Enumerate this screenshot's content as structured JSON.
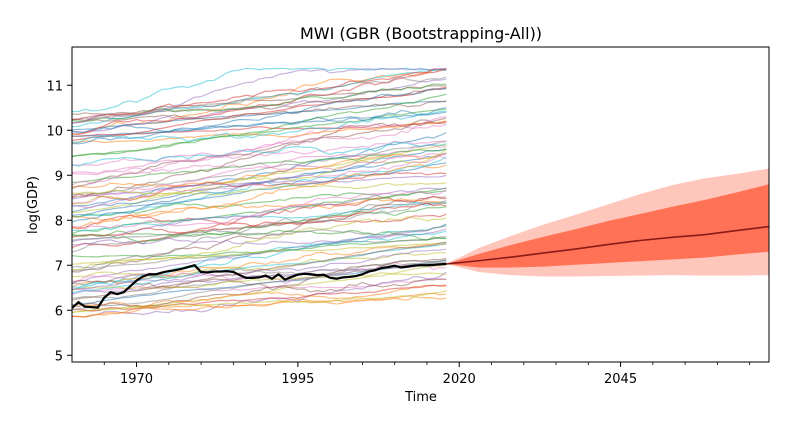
{
  "chart_data": {
    "type": "line",
    "title": "MWI (GBR (Bootstrapping-All))",
    "xlabel": "Time",
    "ylabel": "log(GDP)",
    "xlim": [
      1960,
      2068
    ],
    "ylim": [
      4.85,
      11.85
    ],
    "x_ticks": [
      1970,
      1995,
      2020,
      2045
    ],
    "y_ticks": [
      5,
      6,
      7,
      8,
      9,
      10,
      11
    ],
    "grid": false,
    "legend": "none",
    "history_range": [
      1960,
      2018
    ],
    "forecast_range": [
      2018,
      2068
    ],
    "n_background_series": 90,
    "colors": {
      "highlight_series": "#000000",
      "forecast_median": "#8b1a1a",
      "band_inner": "#ff7256",
      "band_outer": "#ffc6bb"
    },
    "highlight_series": {
      "name": "MWI",
      "x": [
        1960,
        1961,
        1962,
        1963,
        1964,
        1965,
        1966,
        1967,
        1968,
        1969,
        1970,
        1971,
        1972,
        1973,
        1974,
        1975,
        1976,
        1977,
        1978,
        1979,
        1980,
        1981,
        1982,
        1983,
        1984,
        1985,
        1986,
        1987,
        1988,
        1989,
        1990,
        1991,
        1992,
        1993,
        1994,
        1995,
        1996,
        1997,
        1998,
        1999,
        2000,
        2001,
        2002,
        2003,
        2004,
        2005,
        2006,
        2007,
        2008,
        2009,
        2010,
        2011,
        2012,
        2013,
        2014,
        2015,
        2016,
        2017,
        2018
      ],
      "values": [
        6.05,
        6.18,
        6.08,
        6.07,
        6.06,
        6.28,
        6.4,
        6.36,
        6.4,
        6.53,
        6.66,
        6.75,
        6.8,
        6.8,
        6.84,
        6.87,
        6.89,
        6.92,
        6.96,
        7.0,
        6.85,
        6.84,
        6.86,
        6.86,
        6.87,
        6.85,
        6.78,
        6.72,
        6.72,
        6.73,
        6.77,
        6.7,
        6.8,
        6.68,
        6.74,
        6.79,
        6.81,
        6.8,
        6.78,
        6.79,
        6.72,
        6.7,
        6.73,
        6.74,
        6.76,
        6.8,
        6.86,
        6.89,
        6.94,
        6.96,
        6.99,
        6.95,
        6.97,
        6.99,
        7.0,
        7.0,
        7.01,
        7.02,
        7.03
      ]
    },
    "forecast": {
      "x": [
        2018,
        2023,
        2028,
        2033,
        2038,
        2043,
        2048,
        2053,
        2058,
        2063,
        2068
      ],
      "median": [
        7.03,
        7.1,
        7.18,
        7.27,
        7.36,
        7.46,
        7.55,
        7.62,
        7.68,
        7.77,
        7.86
      ],
      "inner_low": [
        7.03,
        6.95,
        6.95,
        6.97,
        7.01,
        7.05,
        7.09,
        7.13,
        7.17,
        7.24,
        7.3
      ],
      "inner_high": [
        7.03,
        7.25,
        7.45,
        7.63,
        7.8,
        7.98,
        8.14,
        8.3,
        8.45,
        8.62,
        8.8
      ],
      "outer_low": [
        7.03,
        6.85,
        6.78,
        6.75,
        6.75,
        6.76,
        6.77,
        6.78,
        6.77,
        6.77,
        6.78
      ],
      "outer_high": [
        7.03,
        7.38,
        7.65,
        7.9,
        8.12,
        8.35,
        8.58,
        8.78,
        8.93,
        9.03,
        9.15
      ]
    }
  }
}
